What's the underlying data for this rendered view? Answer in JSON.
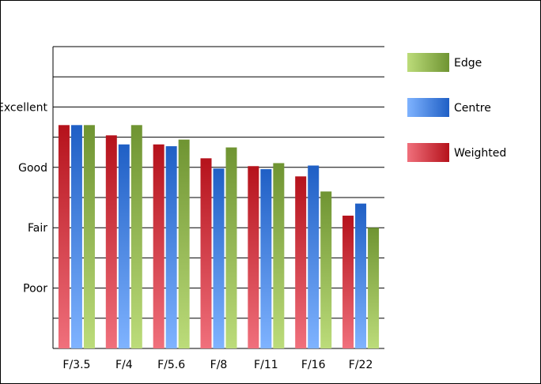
{
  "chart_data": {
    "type": "bar",
    "categories": [
      "F/3.5",
      "F/4",
      "F/5.6",
      "F/8",
      "F/11",
      "F/16",
      "F/22"
    ],
    "y_tick_labels": [
      {
        "label": "Poor",
        "value": 1
      },
      {
        "label": "Fair",
        "value": 2
      },
      {
        "label": "Good",
        "value": 3
      },
      {
        "label": "Excellent",
        "value": 4
      }
    ],
    "ylim": [
      0,
      5
    ],
    "grid": true,
    "legend_position": "right",
    "series": [
      {
        "name": "Weighted",
        "values": [
          3.7,
          3.53,
          3.38,
          3.15,
          3.02,
          2.85,
          2.2
        ],
        "color_light": "#f0707c",
        "color_dark": "#b5121b"
      },
      {
        "name": "Centre",
        "values": [
          3.7,
          3.38,
          3.35,
          2.98,
          2.97,
          3.03,
          2.4
        ],
        "color_light": "#7fb3ff",
        "color_dark": "#1f5fc5"
      },
      {
        "name": "Edge",
        "values": [
          3.7,
          3.7,
          3.46,
          3.33,
          3.07,
          2.6,
          2.0
        ],
        "color_light": "#bcdc7a",
        "color_dark": "#6f9432"
      }
    ],
    "legend_order": [
      "Edge",
      "Centre",
      "Weighted"
    ]
  }
}
